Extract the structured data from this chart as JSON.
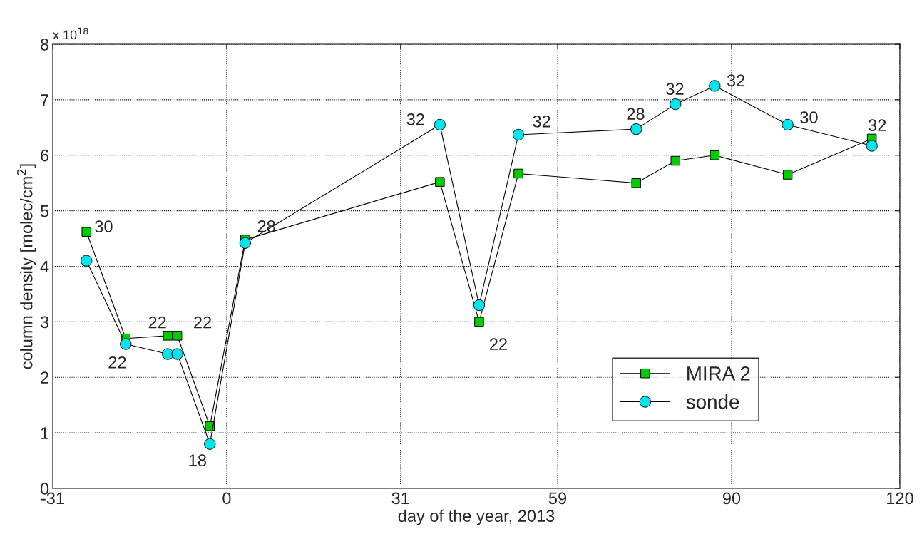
{
  "chart_data": {
    "type": "line",
    "xlabel": "day of the year, 2013",
    "ylabel": "column density [molec/cm$^{2}$]",
    "x": [
      -25,
      -18,
      -10.5,
      -8.8,
      -3,
      3.3,
      38,
      45,
      52,
      73,
      80,
      87,
      100,
      115
    ],
    "series": [
      {
        "name": "MIRA 2",
        "color": "#00cc00",
        "marker": "square",
        "values": [
          4.62,
          2.7,
          2.75,
          2.75,
          1.12,
          4.48,
          5.52,
          3.0,
          5.67,
          5.5,
          5.9,
          6.0,
          5.65,
          6.3
        ]
      },
      {
        "name": "sonde",
        "color": "#00e5ee",
        "marker": "circle",
        "values": [
          4.1,
          2.6,
          2.42,
          2.42,
          0.8,
          4.42,
          6.55,
          3.3,
          6.37,
          6.47,
          6.92,
          7.25,
          6.55,
          6.17
        ]
      }
    ],
    "xlim": [
      -31,
      120
    ],
    "xticks": [
      -31,
      0,
      31,
      59,
      90,
      120
    ],
    "ylim": [
      0,
      8
    ],
    "yticks": [
      0,
      1,
      2,
      3,
      4,
      5,
      6,
      7,
      8
    ],
    "grid": true,
    "legend": "bottom right",
    "line_style": "solid",
    "annotations": [
      "x 10$^{18}$",
      {
        "text": "30",
        "x": -25,
        "y": 4.62
      },
      {
        "text": "22",
        "x": -18,
        "y": 2.6
      },
      {
        "text": "22",
        "x": -10.5,
        "y": 2.75
      },
      {
        "text": "22",
        "x": -8.8,
        "y": 2.75
      },
      {
        "text": "18",
        "x": -3,
        "y": 0.8
      },
      {
        "text": "28",
        "x": 3.3,
        "y": 4.48
      },
      {
        "text": "32",
        "x": 38,
        "y": 6.55
      },
      {
        "text": "22",
        "x": 45,
        "y": 3.0
      },
      {
        "text": "32",
        "x": 52,
        "y": 6.37
      },
      {
        "text": "28",
        "x": 73,
        "y": 6.47
      },
      {
        "text": "32",
        "x": 80,
        "y": 6.92
      },
      {
        "text": "32",
        "x": 87,
        "y": 7.25
      },
      {
        "text": "30",
        "x": 100,
        "y": 6.55
      },
      {
        "text": "32",
        "x": 115,
        "y": 6.3
      }
    ]
  }
}
